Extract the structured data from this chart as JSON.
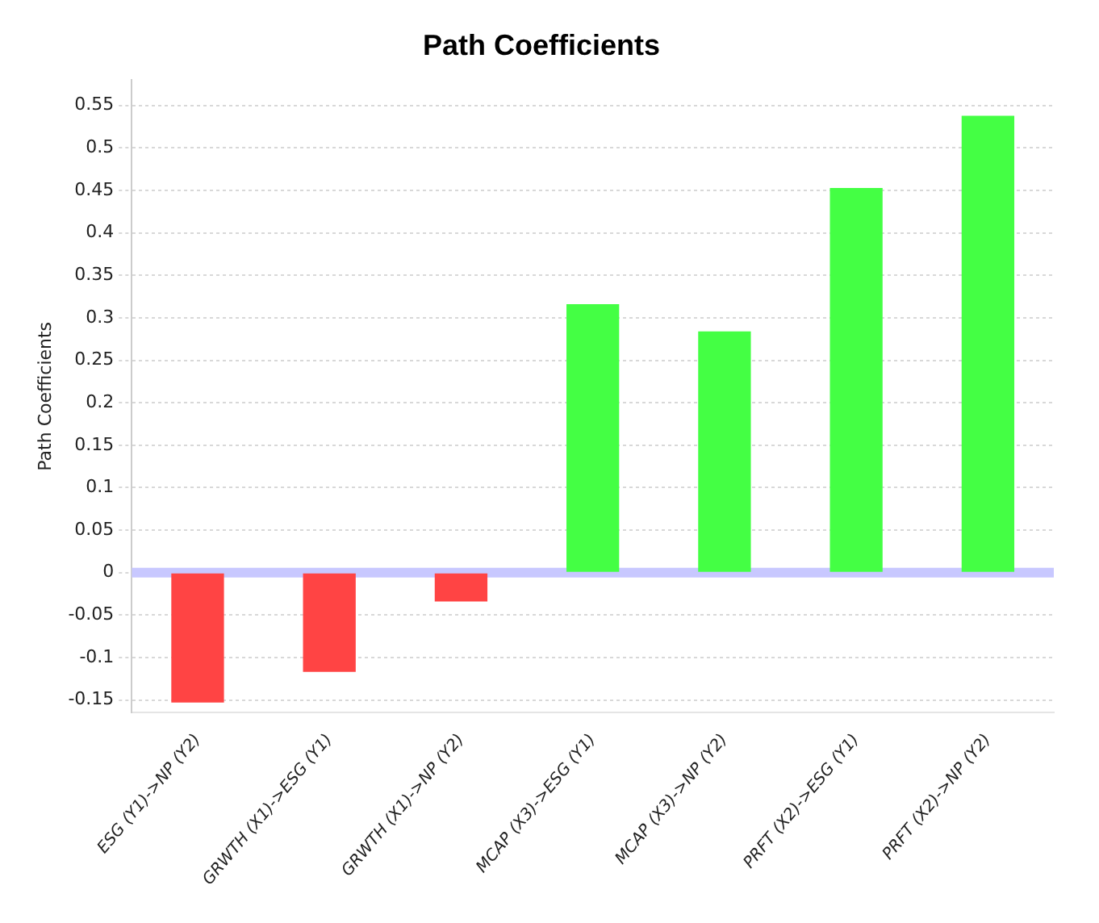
{
  "chart_data": {
    "type": "bar",
    "title": "Path Coefficients",
    "ylabel": "Path Coefficients",
    "categories": [
      "ESG (Y1)->NP (Y2)",
      "GRWTH (X1)->ESG (Y1)",
      "GRWTH (X1)->NP (Y2)",
      "MCAP (X3)->ESG (Y1)",
      "MCAP (X3)->NP (Y2)",
      "PRFT (X2)->ESG (Y1)",
      "PRFT (X2)->NP (Y2)"
    ],
    "values": [
      -0.153,
      -0.117,
      -0.034,
      0.316,
      0.284,
      0.453,
      0.538
    ],
    "colors": [
      "#ff4444",
      "#ff4444",
      "#ff4444",
      "#44ff44",
      "#44ff44",
      "#44ff44",
      "#44ff44"
    ],
    "ylim": [
      -0.165,
      0.58
    ],
    "yticks": [
      -0.15,
      -0.1,
      -0.05,
      0,
      0.05,
      0.1,
      0.15,
      0.2,
      0.25,
      0.3,
      0.35,
      0.4,
      0.45,
      0.5,
      0.55
    ],
    "ref_lines": [
      {
        "axis": "y",
        "value": 0,
        "color": "#c8c8ff"
      }
    ],
    "grid": "y",
    "legend": false
  }
}
